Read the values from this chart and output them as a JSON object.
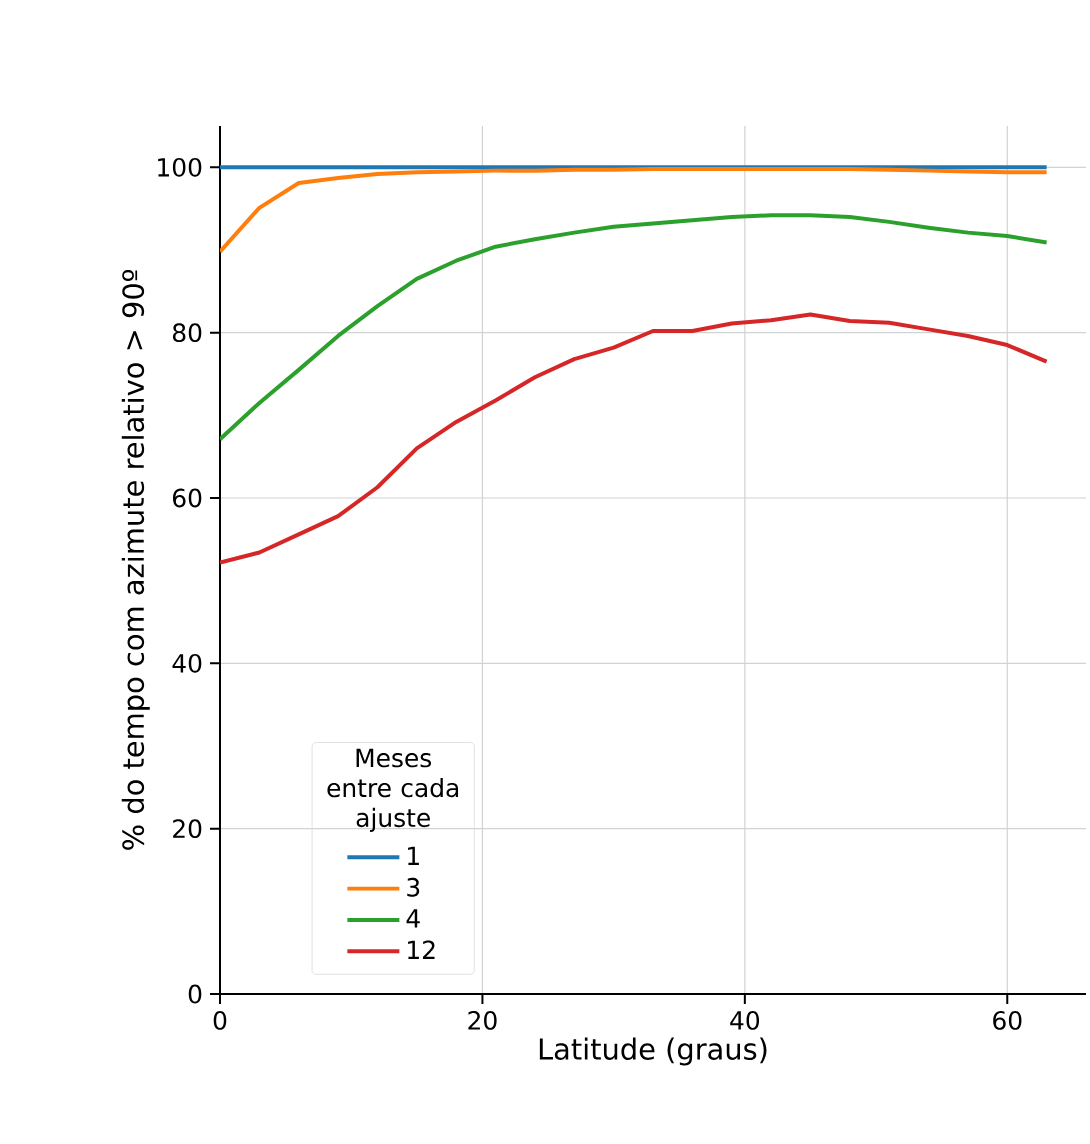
{
  "chart_data": {
    "type": "line",
    "xlabel": "Latitude (graus)",
    "ylabel": "% do tempo com azimute relativo > 90º",
    "legend_title": "Meses entre cada ajuste",
    "legend": "bottom left",
    "grid": true,
    "xlim": [
      0,
      66
    ],
    "ylim": [
      0,
      105
    ],
    "xticks": [
      0,
      20,
      40,
      60
    ],
    "yticks": [
      0,
      20,
      40,
      60,
      80,
      100
    ],
    "x": [
      0,
      3,
      6,
      9,
      12,
      15,
      18,
      21,
      24,
      27,
      30,
      33,
      36,
      39,
      42,
      45,
      48,
      51,
      54,
      57,
      60,
      63
    ],
    "series": [
      {
        "name": "1",
        "color": "#1f77b4",
        "values": [
          100,
          100,
          100,
          100,
          100,
          100,
          100,
          100,
          100,
          100,
          100,
          100,
          100,
          100,
          100,
          100,
          100,
          100,
          100,
          100,
          100,
          100
        ]
      },
      {
        "name": "3",
        "color": "#ff7f0e",
        "values": [
          89.8,
          95.1,
          98.1,
          98.7,
          99.2,
          99.4,
          99.5,
          99.6,
          99.6,
          99.7,
          99.7,
          99.8,
          99.8,
          99.8,
          99.8,
          99.8,
          99.8,
          99.7,
          99.6,
          99.5,
          99.4,
          99.4
        ]
      },
      {
        "name": "4",
        "color": "#2ca02c",
        "values": [
          67.1,
          71.5,
          75.5,
          79.6,
          83.2,
          86.5,
          88.7,
          90.4,
          91.3,
          92.1,
          92.8,
          93.2,
          93.6,
          94.0,
          94.2,
          94.2,
          94.0,
          93.4,
          92.7,
          92.1,
          91.7,
          90.9
        ]
      },
      {
        "name": "12",
        "color": "#d62728",
        "values": [
          52.2,
          53.4,
          55.6,
          57.8,
          61.3,
          66.0,
          69.2,
          71.8,
          74.6,
          76.8,
          78.2,
          80.2,
          80.2,
          81.1,
          81.5,
          82.2,
          81.4,
          81.2,
          80.4,
          79.6,
          78.5,
          76.5
        ]
      }
    ]
  }
}
